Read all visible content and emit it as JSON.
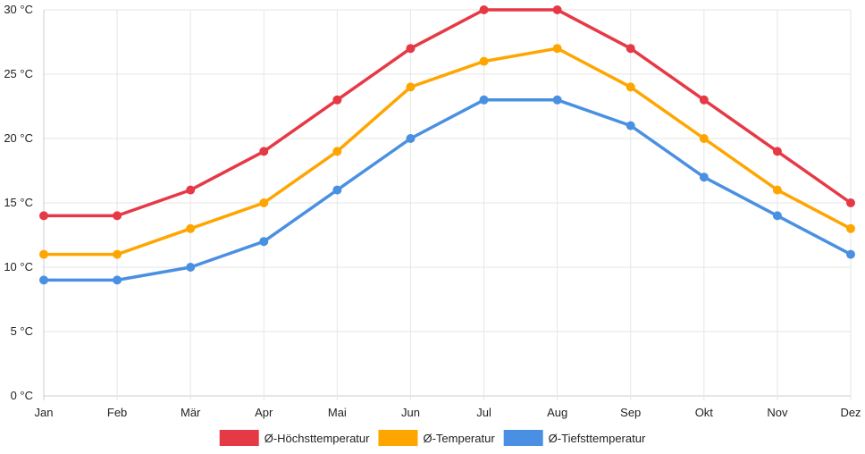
{
  "chart_data": {
    "type": "line",
    "categories": [
      "Jan",
      "Feb",
      "Mär",
      "Apr",
      "Mai",
      "Jun",
      "Jul",
      "Aug",
      "Sep",
      "Okt",
      "Nov",
      "Dez"
    ],
    "series": [
      {
        "name": "Ø-Höchsttemperatur",
        "color": "#e63946",
        "values": [
          14,
          14,
          16,
          19,
          23,
          27,
          30,
          30,
          27,
          23,
          19,
          15
        ]
      },
      {
        "name": "Ø-Temperatur",
        "color": "#ffa500",
        "values": [
          11,
          11,
          13,
          15,
          19,
          24,
          26,
          27,
          24,
          20,
          16,
          13
        ]
      },
      {
        "name": "Ø-Tiefsttemperatur",
        "color": "#4a90e2",
        "values": [
          9,
          9,
          10,
          12,
          16,
          20,
          23,
          23,
          21,
          17,
          14,
          11
        ]
      }
    ],
    "yticks": [
      {
        "value": 0,
        "label": "0 °C"
      },
      {
        "value": 5,
        "label": "5 °C"
      },
      {
        "value": 10,
        "label": "10 °C"
      },
      {
        "value": 15,
        "label": "15 °C"
      },
      {
        "value": 20,
        "label": "20 °C"
      },
      {
        "value": 25,
        "label": "25 °C"
      },
      {
        "value": 30,
        "label": "30 °C"
      }
    ],
    "ylim": [
      0,
      30
    ],
    "grid": true,
    "legend_position": "bottom",
    "title": "",
    "xlabel": "",
    "ylabel": ""
  }
}
